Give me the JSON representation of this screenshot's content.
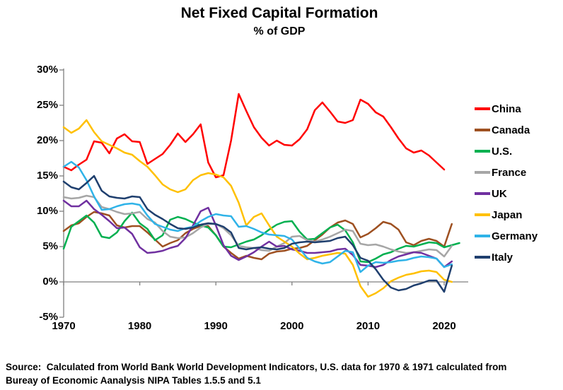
{
  "header": {
    "title": "Net Fixed Capital Formation",
    "subtitle": "% of GDP"
  },
  "source": {
    "line1": "Source:  Calculated from World Bank World Development Indicators, U.S. data for 1970 & 1971 calculated from",
    "line2": "Bureay of Economic Aanalysis NIPA Tables 1.5.5 and 5.1"
  },
  "chart_data": {
    "type": "line",
    "title": "Net Fixed Capital Formation",
    "subtitle": "% of GDP",
    "grid": "zero-line-only",
    "legend_position": "right",
    "x_axis": {
      "min": 1970,
      "max": 2023,
      "ticks": [
        "1970",
        "1980",
        "1990",
        "2000",
        "2010",
        "2020"
      ]
    },
    "y_axis": {
      "min": -5,
      "max": 30,
      "unit": "%",
      "ticks": [
        "30%",
        "25%",
        "20%",
        "15%",
        "10%",
        "5%",
        "0%",
        "-5%"
      ]
    },
    "series": [
      {
        "name": "China",
        "color": "#FF0000",
        "start_year": 1970,
        "values": [
          16.3,
          15.8,
          16.6,
          17.3,
          19.9,
          19.7,
          18.2,
          20.3,
          20.9,
          19.9,
          19.8,
          16.7,
          17.4,
          18.1,
          19.4,
          21.0,
          19.8,
          20.9,
          22.3,
          16.9,
          14.8,
          15.1,
          20.0,
          26.6,
          24.2,
          21.9,
          20.4,
          19.3,
          20.0,
          19.4,
          19.3,
          20.2,
          21.6,
          24.3,
          25.4,
          24.1,
          22.7,
          22.5,
          22.9,
          25.8,
          25.2,
          24.0,
          23.4,
          21.9,
          20.3,
          18.9,
          18.3,
          18.6,
          17.9,
          16.9,
          15.9
        ]
      },
      {
        "name": "Canada",
        "color": "#9E5021",
        "start_year": 1970,
        "values": [
          7.2,
          8.0,
          8.3,
          9.2,
          9.9,
          9.7,
          9.4,
          8.0,
          7.7,
          7.9,
          7.9,
          7.0,
          6.0,
          5.0,
          5.5,
          5.9,
          6.9,
          7.5,
          7.9,
          7.9,
          6.6,
          5.0,
          4.1,
          3.3,
          3.7,
          3.4,
          3.2,
          4.0,
          4.3,
          4.4,
          4.7,
          4.8,
          5.1,
          5.9,
          6.7,
          7.7,
          8.4,
          8.7,
          8.2,
          6.3,
          6.8,
          7.6,
          8.5,
          8.2,
          7.4,
          5.6,
          5.2,
          5.8,
          6.1,
          5.8,
          5.0,
          8.2
        ]
      },
      {
        "name": "U.S.",
        "color": "#00B050",
        "start_year": 1970,
        "values": [
          4.7,
          7.8,
          8.6,
          9.4,
          8.4,
          6.4,
          6.2,
          7.0,
          8.6,
          9.8,
          8.3,
          7.5,
          5.9,
          6.6,
          8.8,
          9.2,
          8.9,
          8.4,
          8.0,
          7.7,
          6.6,
          5.0,
          4.9,
          5.3,
          5.7,
          6.0,
          6.6,
          7.4,
          8.1,
          8.5,
          8.6,
          7.1,
          6.0,
          6.1,
          6.9,
          7.7,
          8.1,
          7.3,
          5.6,
          2.9,
          2.8,
          3.3,
          3.9,
          4.2,
          4.7,
          5.1,
          5.0,
          5.3,
          5.6,
          5.5,
          4.9,
          5.2,
          5.5
        ]
      },
      {
        "name": "France",
        "color": "#A6A6A6",
        "start_year": 1970,
        "values": [
          12.0,
          11.8,
          11.9,
          12.2,
          12.0,
          10.6,
          10.3,
          9.9,
          9.6,
          9.7,
          9.9,
          8.9,
          8.4,
          7.2,
          6.4,
          6.2,
          6.3,
          6.9,
          7.7,
          8.2,
          8.2,
          7.6,
          6.6,
          5.1,
          4.9,
          4.8,
          4.5,
          4.4,
          5.0,
          5.5,
          6.4,
          6.5,
          5.9,
          5.7,
          6.0,
          6.4,
          6.9,
          7.4,
          7.2,
          5.4,
          5.2,
          5.3,
          5.0,
          4.6,
          4.3,
          4.1,
          4.2,
          4.4,
          4.6,
          4.5,
          3.6,
          5.1
        ]
      },
      {
        "name": "UK",
        "color": "#7030A0",
        "start_year": 1970,
        "values": [
          11.5,
          10.7,
          10.7,
          11.5,
          10.3,
          9.5,
          8.6,
          7.6,
          7.7,
          6.8,
          4.9,
          4.1,
          4.2,
          4.4,
          4.8,
          5.1,
          6.2,
          8.0,
          10.0,
          10.5,
          8.0,
          5.2,
          3.7,
          3.1,
          3.6,
          4.2,
          5.0,
          5.7,
          5.0,
          5.1,
          4.6,
          4.4,
          4.1,
          4.1,
          4.2,
          4.3,
          4.6,
          4.7,
          3.8,
          2.4,
          2.3,
          2.1,
          2.4,
          3.1,
          3.6,
          3.9,
          4.2,
          4.1,
          3.7,
          3.3,
          2.1,
          2.9
        ]
      },
      {
        "name": "Japan",
        "color": "#FFC000",
        "start_year": 1970,
        "values": [
          21.9,
          21.1,
          21.7,
          22.9,
          21.2,
          19.9,
          19.4,
          18.9,
          18.3,
          18.0,
          17.1,
          16.3,
          15.1,
          13.8,
          13.1,
          12.7,
          13.1,
          14.4,
          15.1,
          15.4,
          15.2,
          14.8,
          13.6,
          11.2,
          8.0,
          9.2,
          9.7,
          8.0,
          6.4,
          5.7,
          5.0,
          4.0,
          3.2,
          3.4,
          3.7,
          3.9,
          4.1,
          4.0,
          2.4,
          -0.6,
          -2.1,
          -1.6,
          -0.9,
          0.1,
          0.6,
          1.0,
          1.2,
          1.5,
          1.6,
          1.4,
          0.3,
          0.0
        ]
      },
      {
        "name": "Germany",
        "color": "#2FB3E8",
        "start_year": 1970,
        "values": [
          16.3,
          17.0,
          16.2,
          14.4,
          12.1,
          10.2,
          10.3,
          10.7,
          11.0,
          11.1,
          10.9,
          9.4,
          8.2,
          7.8,
          7.4,
          7.2,
          7.6,
          7.8,
          8.6,
          9.2,
          9.6,
          9.4,
          9.3,
          7.8,
          7.9,
          7.5,
          7.0,
          6.7,
          6.6,
          6.5,
          6.0,
          4.7,
          3.4,
          2.9,
          2.6,
          2.8,
          3.6,
          4.4,
          4.2,
          1.4,
          2.3,
          2.8,
          2.7,
          2.8,
          3.0,
          3.1,
          3.4,
          3.6,
          3.5,
          3.3,
          2.1,
          2.5
        ]
      },
      {
        "name": "Italy",
        "color": "#1F3F6E",
        "start_year": 1970,
        "values": [
          14.2,
          13.4,
          13.1,
          14.0,
          15.0,
          12.9,
          12.1,
          11.9,
          11.8,
          12.1,
          12.0,
          10.3,
          9.5,
          8.9,
          8.2,
          7.6,
          7.5,
          7.7,
          8.1,
          8.3,
          8.2,
          7.8,
          7.0,
          4.8,
          4.6,
          4.8,
          4.9,
          4.7,
          4.6,
          4.8,
          5.4,
          5.6,
          5.7,
          5.6,
          5.7,
          5.8,
          6.2,
          6.4,
          5.2,
          3.4,
          3.0,
          1.8,
          0.3,
          -0.8,
          -1.2,
          -1.0,
          -0.5,
          -0.2,
          0.2,
          0.2,
          -1.4,
          2.3
        ]
      }
    ]
  },
  "axis_colors": {
    "axis": "#808080",
    "zero_line": "#7F7F7F"
  }
}
